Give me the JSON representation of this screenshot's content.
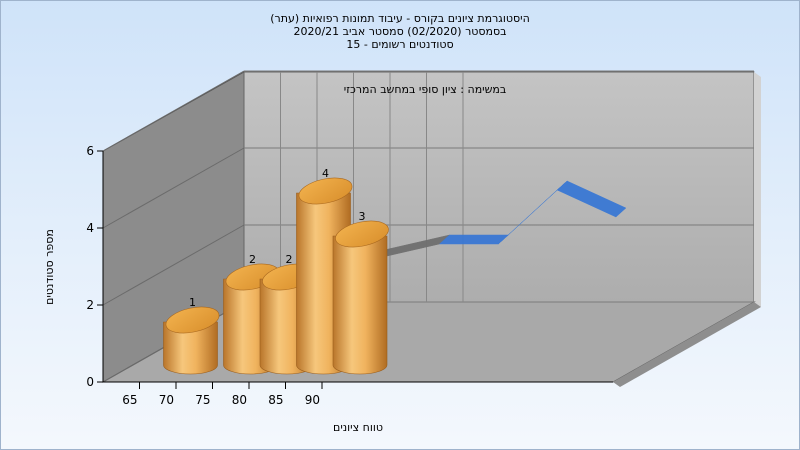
{
  "titles": {
    "line1": "היסטוגרמת ציונים בקורס - עיבוד תמונות רפואיות (עתר)",
    "line2": "בסמסטר  (02/2020)  סמסטר אביב 2020/21",
    "line3": "סטודנטים רשומים - 15"
  },
  "chart_data": {
    "type": "bar",
    "title": "היסטוגרמת ציונים בקורס - עיבוד תמונות רפואיות (עתר)",
    "series_label": "במשימה : ציון סופי במחשב המרכזי",
    "xlabel": "טווח ציונים",
    "ylabel": "מספר סטודנטים",
    "x_ticks": [
      "65",
      "70",
      "75",
      "80",
      "85",
      "90"
    ],
    "y_ticks": [
      "0",
      "2",
      "4",
      "6"
    ],
    "ylim": [
      0,
      6
    ],
    "bars": [
      {
        "category": "65",
        "value": 1,
        "label": "1"
      },
      {
        "category": "75",
        "value": 2,
        "label": "2"
      },
      {
        "category": "80",
        "value": 2,
        "label": "2"
      },
      {
        "category": "85",
        "value": 4,
        "label": "4"
      },
      {
        "category": "90",
        "value": 3,
        "label": "3"
      }
    ],
    "trend_line": {
      "x": [
        65,
        70,
        75,
        80,
        85,
        90
      ],
      "y": [
        1,
        1.5,
        2,
        2,
        4,
        3
      ]
    },
    "grid": true,
    "colors": {
      "bars": "#e8a84e",
      "trend": "#3a78d4",
      "walls": "#a4a4a4"
    }
  }
}
